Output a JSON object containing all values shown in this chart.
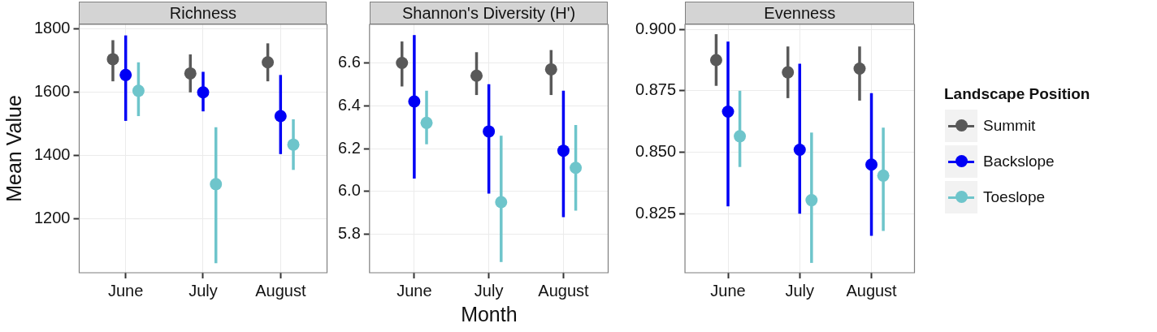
{
  "chart_data": [
    {
      "type": "scatter",
      "title": "Richness",
      "ylabel": "Mean Value",
      "categories": [
        "June",
        "July",
        "August"
      ],
      "ylim": [
        1030,
        1815
      ],
      "yticks": [
        1200,
        1400,
        1600,
        1800
      ],
      "grid": true,
      "marker": "circle",
      "series": [
        {
          "color": "#595959",
          "values": [
            1705,
            1660,
            1695
          ],
          "errors": [
            [
              1635,
              1765
            ],
            [
              1600,
              1720
            ],
            [
              1635,
              1755
            ]
          ]
        },
        {
          "color": "#0000f5",
          "values": [
            1655,
            1600,
            1525
          ],
          "errors": [
            [
              1510,
              1780
            ],
            [
              1540,
              1665
            ],
            [
              1405,
              1655
            ]
          ]
        },
        {
          "color": "#6ec5cb",
          "values": [
            1605,
            1310,
            1435
          ],
          "errors": [
            [
              1525,
              1695
            ],
            [
              1060,
              1490
            ],
            [
              1355,
              1515
            ]
          ]
        }
      ]
    },
    {
      "type": "scatter",
      "title": "Shannon's Diversity (H')",
      "xlabel": "Month",
      "categories": [
        "June",
        "July",
        "August"
      ],
      "ylim": [
        5.62,
        6.78
      ],
      "yticks": [
        5.8,
        {
          "value": 6,
          "label": "6.0"
        },
        6.2,
        6.4,
        6.6
      ],
      "grid": true,
      "marker": "circle",
      "series": [
        {
          "color": "#595959",
          "values": [
            6.6,
            6.54,
            6.57
          ],
          "errors": [
            [
              6.49,
              6.7
            ],
            [
              6.45,
              6.65
            ],
            [
              6.45,
              6.66
            ]
          ]
        },
        {
          "color": "#0000f5",
          "values": [
            6.42,
            6.28,
            6.19
          ],
          "errors": [
            [
              6.06,
              6.73
            ],
            [
              5.99,
              6.5
            ],
            [
              5.88,
              6.47
            ]
          ]
        },
        {
          "color": "#6ec5cb",
          "values": [
            6.32,
            5.95,
            6.11
          ],
          "errors": [
            [
              6.22,
              6.47
            ],
            [
              5.67,
              6.26
            ],
            [
              5.91,
              6.31
            ]
          ]
        }
      ]
    },
    {
      "type": "scatter",
      "title": "Evenness",
      "legend_title": "Landscape Position",
      "categories": [
        "June",
        "July",
        "August"
      ],
      "ylim": [
        0.801,
        0.902
      ],
      "yticks": [
        0.825,
        {
          "value": 0.85,
          "label": "0.850"
        },
        0.875,
        {
          "value": 0.9,
          "label": "0.900"
        }
      ],
      "grid": true,
      "legend": "right",
      "marker": "circle",
      "series": [
        {
          "name": "Summit",
          "color": "#595959",
          "values": [
            0.8875,
            0.8825,
            0.884
          ],
          "errors": [
            [
              0.877,
              0.898
            ],
            [
              0.872,
              0.893
            ],
            [
              0.871,
              0.893
            ]
          ]
        },
        {
          "name": "Backslope",
          "color": "#0000f5",
          "values": [
            0.8665,
            0.851,
            0.845
          ],
          "errors": [
            [
              0.828,
              0.895
            ],
            [
              0.825,
              0.886
            ],
            [
              0.816,
              0.874
            ]
          ]
        },
        {
          "name": "Toeslope",
          "color": "#6ec5cb",
          "values": [
            0.8565,
            0.8305,
            0.8405
          ],
          "errors": [
            [
              0.844,
              0.875
            ],
            [
              0.805,
              0.858
            ],
            [
              0.818,
              0.86
            ]
          ]
        }
      ]
    }
  ]
}
